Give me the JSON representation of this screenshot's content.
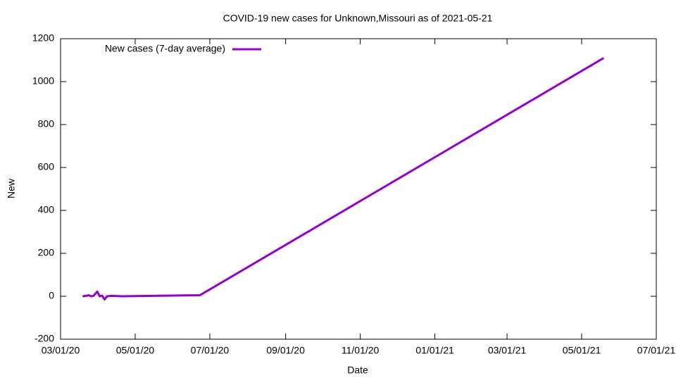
{
  "chart_data": {
    "type": "line",
    "title": "COVID-19 new cases for Unknown,Missouri as of 2021-05-21",
    "x_label": "Date",
    "y_label": "New",
    "x": [
      "2020-03-19",
      "2020-03-22",
      "2020-03-24",
      "2020-03-26",
      "2020-03-28",
      "2020-03-31",
      "2020-04-02",
      "2020-04-04",
      "2020-04-06",
      "2020-04-08",
      "2020-04-12",
      "2020-04-20",
      "2020-04-30",
      "2020-06-23",
      "2021-05-19"
    ],
    "series": [
      {
        "name": "New cases (7-day average)",
        "color": "#9400d3",
        "values": [
          0,
          2,
          5,
          0,
          2,
          22,
          0,
          3,
          -15,
          0,
          2,
          0,
          1,
          5,
          1110
        ]
      }
    ],
    "xlim": [
      "2020-03-01",
      "2021-07-01"
    ],
    "xticks": [
      {
        "value": "2020-03-01",
        "label": "03/01/20"
      },
      {
        "value": "2020-05-01",
        "label": "05/01/20"
      },
      {
        "value": "2020-07-01",
        "label": "07/01/20"
      },
      {
        "value": "2020-09-01",
        "label": "09/01/20"
      },
      {
        "value": "2020-11-01",
        "label": "11/01/20"
      },
      {
        "value": "2021-01-01",
        "label": "01/01/21"
      },
      {
        "value": "2021-03-01",
        "label": "03/01/21"
      },
      {
        "value": "2021-05-01",
        "label": "05/01/21"
      },
      {
        "value": "2021-07-01",
        "label": "07/01/21"
      }
    ],
    "ylim": [
      -200,
      1200
    ],
    "yticks": [
      -200,
      0,
      200,
      400,
      600,
      800,
      1000,
      1200
    ],
    "legend": "top-left"
  }
}
